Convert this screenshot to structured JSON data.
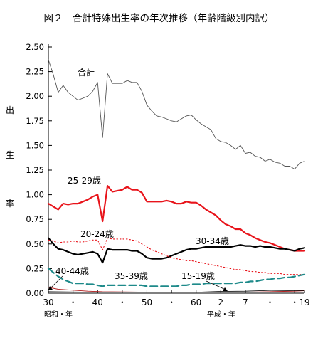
{
  "chart_data": {
    "type": "line",
    "title": "図２　合計特殊出生率の年次推移（年齢階級別内訳）",
    "ylabel": "出生率",
    "ylim": [
      0,
      2.5
    ],
    "yticks": [
      "0.00",
      "0.25",
      "0.50",
      "0.75",
      "1.00",
      "1.25",
      "1.50",
      "1.75",
      "2.00",
      "2.25",
      "2.50"
    ],
    "xlim": [
      1955,
      2007
    ],
    "xticks": [
      {
        "x": 1955,
        "label": "30"
      },
      {
        "x": 1960,
        "label": "・"
      },
      {
        "x": 1965,
        "label": "40"
      },
      {
        "x": 1970,
        "label": "・"
      },
      {
        "x": 1975,
        "label": "50"
      },
      {
        "x": 1980,
        "label": "・"
      },
      {
        "x": 1985,
        "label": "60"
      },
      {
        "x": 1990,
        "label": "2"
      },
      {
        "x": 1995,
        "label": "7"
      },
      {
        "x": 2000,
        "label": "・"
      },
      {
        "x": 2005,
        "label": "・"
      },
      {
        "x": 2007,
        "label": "19"
      }
    ],
    "era_labels": {
      "showa": "昭和・年",
      "heisei": "平成・年"
    },
    "grid": false,
    "series": [
      {
        "name": "合計",
        "color": "#555555",
        "style": "thin",
        "x": [
          1955,
          1956,
          1957,
          1958,
          1959,
          1960,
          1961,
          1962,
          1963,
          1964,
          1965,
          1966,
          1967,
          1968,
          1969,
          1970,
          1971,
          1972,
          1973,
          1974,
          1975,
          1976,
          1977,
          1978,
          1979,
          1980,
          1981,
          1982,
          1983,
          1984,
          1985,
          1986,
          1987,
          1988,
          1989,
          1990,
          1991,
          1992,
          1993,
          1994,
          1995,
          1996,
          1997,
          1998,
          1999,
          2000,
          2001,
          2002,
          2003,
          2004,
          2005,
          2006,
          2007
        ],
        "y": [
          2.37,
          2.22,
          2.04,
          2.11,
          2.04,
          2.0,
          1.96,
          1.98,
          2.0,
          2.05,
          2.14,
          1.58,
          2.23,
          2.13,
          2.13,
          2.13,
          2.16,
          2.14,
          2.14,
          2.05,
          1.91,
          1.85,
          1.8,
          1.79,
          1.77,
          1.75,
          1.74,
          1.77,
          1.8,
          1.81,
          1.76,
          1.72,
          1.69,
          1.66,
          1.57,
          1.54,
          1.53,
          1.5,
          1.46,
          1.5,
          1.42,
          1.43,
          1.39,
          1.38,
          1.34,
          1.36,
          1.33,
          1.32,
          1.29,
          1.29,
          1.26,
          1.32,
          1.34
        ]
      },
      {
        "name": "25-29歳",
        "color": "#e8141b",
        "style": "thick",
        "x": [
          1955,
          1956,
          1957,
          1958,
          1959,
          1960,
          1961,
          1962,
          1963,
          1964,
          1965,
          1966,
          1967,
          1968,
          1969,
          1970,
          1971,
          1972,
          1973,
          1974,
          1975,
          1976,
          1977,
          1978,
          1979,
          1980,
          1981,
          1982,
          1983,
          1984,
          1985,
          1986,
          1987,
          1988,
          1989,
          1990,
          1991,
          1992,
          1993,
          1994,
          1995,
          1996,
          1997,
          1998,
          1999,
          2000,
          2001,
          2002,
          2003,
          2004,
          2005,
          2006,
          2007
        ],
        "y": [
          0.91,
          0.88,
          0.85,
          0.91,
          0.9,
          0.91,
          0.91,
          0.93,
          0.95,
          0.98,
          1.0,
          0.73,
          1.09,
          1.03,
          1.04,
          1.05,
          1.08,
          1.05,
          1.05,
          1.02,
          0.93,
          0.93,
          0.93,
          0.93,
          0.94,
          0.93,
          0.91,
          0.91,
          0.93,
          0.92,
          0.92,
          0.89,
          0.85,
          0.82,
          0.79,
          0.74,
          0.7,
          0.68,
          0.65,
          0.65,
          0.61,
          0.59,
          0.56,
          0.54,
          0.52,
          0.51,
          0.49,
          0.47,
          0.45,
          0.44,
          0.43,
          0.43,
          0.43
        ]
      },
      {
        "name": "30-34歳",
        "color": "#000000",
        "style": "thick",
        "x": [
          1955,
          1956,
          1957,
          1958,
          1959,
          1960,
          1961,
          1962,
          1963,
          1964,
          1965,
          1966,
          1967,
          1968,
          1969,
          1970,
          1971,
          1972,
          1973,
          1974,
          1975,
          1976,
          1977,
          1978,
          1979,
          1980,
          1981,
          1982,
          1983,
          1984,
          1985,
          1986,
          1987,
          1988,
          1989,
          1990,
          1991,
          1992,
          1993,
          1994,
          1995,
          1996,
          1997,
          1998,
          1999,
          2000,
          2001,
          2002,
          2003,
          2004,
          2005,
          2006,
          2007
        ],
        "y": [
          0.56,
          0.5,
          0.45,
          0.44,
          0.42,
          0.4,
          0.39,
          0.4,
          0.41,
          0.42,
          0.4,
          0.31,
          0.45,
          0.44,
          0.44,
          0.44,
          0.44,
          0.43,
          0.43,
          0.4,
          0.36,
          0.35,
          0.35,
          0.35,
          0.36,
          0.38,
          0.4,
          0.42,
          0.44,
          0.45,
          0.45,
          0.46,
          0.47,
          0.47,
          0.47,
          0.47,
          0.47,
          0.47,
          0.48,
          0.49,
          0.48,
          0.48,
          0.47,
          0.48,
          0.47,
          0.47,
          0.46,
          0.45,
          0.45,
          0.44,
          0.43,
          0.45,
          0.46
        ]
      },
      {
        "name": "20-24歳",
        "color": "#e8141b",
        "style": "dotted",
        "x": [
          1955,
          1956,
          1957,
          1958,
          1959,
          1960,
          1961,
          1962,
          1963,
          1964,
          1965,
          1966,
          1967,
          1968,
          1969,
          1970,
          1971,
          1972,
          1973,
          1974,
          1975,
          1976,
          1977,
          1978,
          1979,
          1980,
          1981,
          1982,
          1983,
          1984,
          1985,
          1986,
          1987,
          1988,
          1989,
          1990,
          1991,
          1992,
          1993,
          1994,
          1995,
          1996,
          1997,
          1998,
          1999,
          2000,
          2001,
          2002,
          2003,
          2004,
          2005,
          2006,
          2007
        ],
        "y": [
          0.54,
          0.53,
          0.51,
          0.52,
          0.52,
          0.53,
          0.52,
          0.52,
          0.53,
          0.54,
          0.54,
          0.44,
          0.56,
          0.55,
          0.55,
          0.55,
          0.55,
          0.54,
          0.53,
          0.5,
          0.47,
          0.44,
          0.42,
          0.4,
          0.38,
          0.36,
          0.35,
          0.34,
          0.33,
          0.33,
          0.32,
          0.31,
          0.3,
          0.29,
          0.28,
          0.27,
          0.26,
          0.25,
          0.24,
          0.24,
          0.23,
          0.22,
          0.22,
          0.21,
          0.21,
          0.2,
          0.2,
          0.2,
          0.19,
          0.19,
          0.19,
          0.19,
          0.19
        ]
      },
      {
        "name": "35-39歳",
        "color": "#1e8a8a",
        "style": "dashed",
        "x": [
          1955,
          1956,
          1957,
          1958,
          1959,
          1960,
          1961,
          1962,
          1963,
          1964,
          1965,
          1966,
          1967,
          1968,
          1969,
          1970,
          1971,
          1972,
          1973,
          1974,
          1975,
          1976,
          1977,
          1978,
          1979,
          1980,
          1981,
          1982,
          1983,
          1984,
          1985,
          1986,
          1987,
          1988,
          1989,
          1990,
          1991,
          1992,
          1993,
          1994,
          1995,
          1996,
          1997,
          1998,
          1999,
          2000,
          2001,
          2002,
          2003,
          2004,
          2005,
          2006,
          2007
        ],
        "y": [
          0.25,
          0.21,
          0.17,
          0.14,
          0.12,
          0.1,
          0.1,
          0.1,
          0.09,
          0.09,
          0.08,
          0.07,
          0.08,
          0.08,
          0.08,
          0.08,
          0.08,
          0.08,
          0.08,
          0.08,
          0.07,
          0.07,
          0.07,
          0.07,
          0.07,
          0.07,
          0.07,
          0.08,
          0.08,
          0.09,
          0.09,
          0.09,
          0.1,
          0.1,
          0.1,
          0.1,
          0.1,
          0.1,
          0.1,
          0.11,
          0.11,
          0.12,
          0.12,
          0.13,
          0.14,
          0.14,
          0.15,
          0.15,
          0.16,
          0.16,
          0.17,
          0.18,
          0.19
        ]
      },
      {
        "name": "40-44歳",
        "color": "#b01818",
        "style": "thin",
        "x": [
          1955,
          1957,
          1960,
          1963,
          1966,
          1970,
          1975,
          1980,
          1985,
          1990,
          1995,
          2000,
          2005,
          2007
        ],
        "y": [
          0.06,
          0.04,
          0.03,
          0.02,
          0.015,
          0.013,
          0.01,
          0.01,
          0.01,
          0.01,
          0.01,
          0.015,
          0.02,
          0.025
        ]
      },
      {
        "name": "15-19歳",
        "color": "#000000",
        "style": "hairline",
        "x": [
          1955,
          1960,
          1965,
          1970,
          1975,
          1980,
          1985,
          1990,
          1995,
          2000,
          2005,
          2007
        ],
        "y": [
          0.015,
          0.012,
          0.01,
          0.01,
          0.01,
          0.01,
          0.01,
          0.018,
          0.02,
          0.028,
          0.025,
          0.026
        ]
      }
    ],
    "annotations": [
      {
        "text": "合計"
      },
      {
        "text": "25-29歳"
      },
      {
        "text": "20-24歳"
      },
      {
        "text": "30-34歳"
      },
      {
        "text": "40-44歳"
      },
      {
        "text": "35-39歳"
      },
      {
        "text": "15-19歳"
      }
    ]
  }
}
